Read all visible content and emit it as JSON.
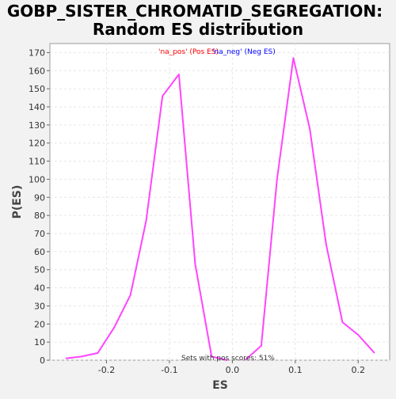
{
  "colors": {
    "background": "#f2f2f2",
    "plot_background": "#ffffff",
    "line": "#ff44ff",
    "grid": "#e6e6e6",
    "legend_pos": "#ff0000",
    "legend_neg": "#0000ff"
  },
  "chart_data": {
    "type": "line",
    "title": "GOBP_SISTER_CHROMATID_SEGREGATION: Random ES distribution",
    "title_lines": [
      "GOBP_SISTER_CHROMATID_SEGREGATION:",
      "Random ES distribution"
    ],
    "xlabel": "ES",
    "ylabel": "P(ES)",
    "xlim": [
      -0.29,
      0.25
    ],
    "ylim": [
      0,
      175
    ],
    "x_ticks": [
      -0.2,
      -0.1,
      0.0,
      0.1,
      0.2
    ],
    "x_tick_labels": [
      "-0.2",
      "-0.1",
      "0.0",
      "0.1",
      "0.2"
    ],
    "y_ticks": [
      0,
      10,
      20,
      30,
      40,
      50,
      60,
      70,
      80,
      90,
      100,
      110,
      120,
      130,
      140,
      150,
      160,
      170
    ],
    "grid": true,
    "legend": {
      "placement": "top-center",
      "pos_label": "'na_pos' (Pos ES)",
      "neg_label": "'na_neg' (Neg ES)"
    },
    "annotation": "Sets with pos scores: 51%",
    "series": [
      {
        "x": [
          -0.265,
          -0.24,
          -0.214,
          -0.188,
          -0.162,
          -0.137,
          -0.111,
          -0.085,
          -0.059,
          -0.033,
          -0.008
        ],
        "y": [
          1,
          2,
          4,
          18,
          36,
          77,
          146,
          158,
          53,
          2,
          0
        ]
      },
      {
        "x": [
          0.02,
          0.046,
          0.071,
          0.097,
          0.123,
          0.149,
          0.175,
          0.2,
          0.226
        ],
        "y": [
          0,
          8,
          100,
          167,
          128,
          64,
          21,
          14,
          4
        ]
      }
    ]
  }
}
